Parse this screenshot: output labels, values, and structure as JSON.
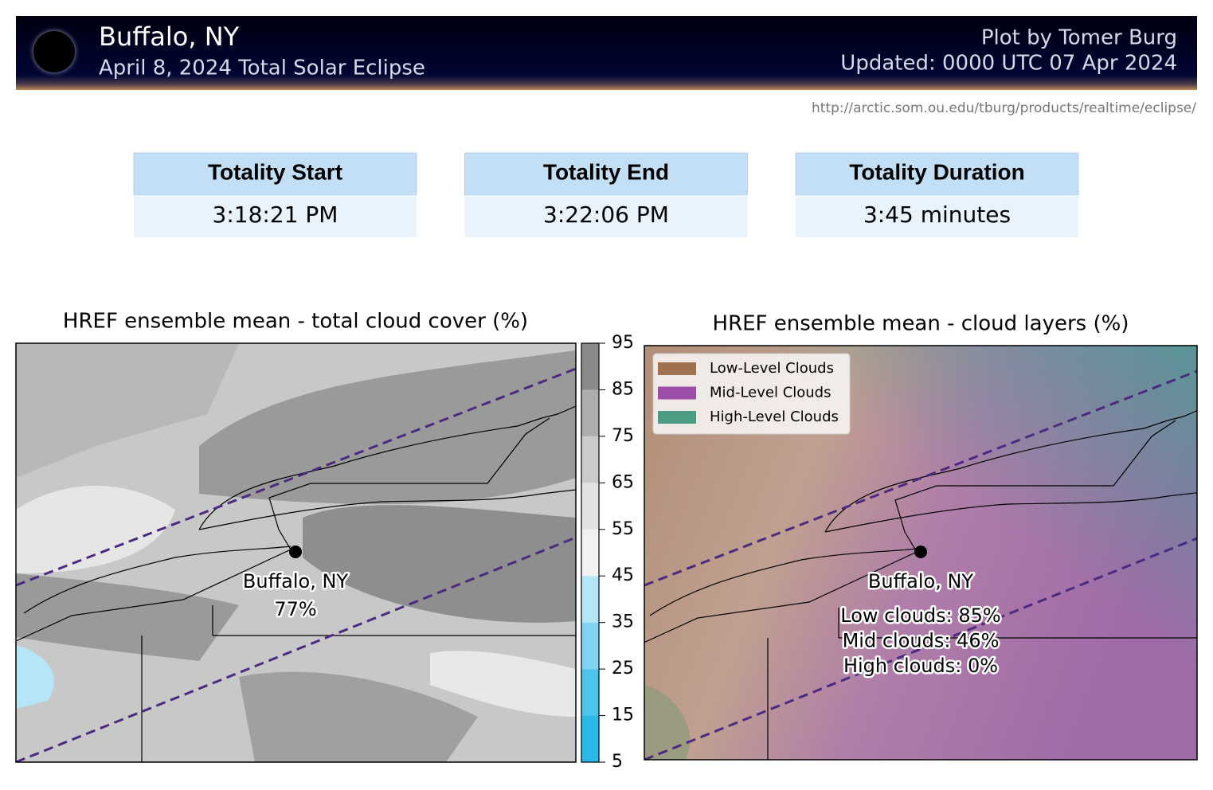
{
  "header": {
    "title": "Buffalo, NY",
    "subtitle": "April 8, 2024 Total Solar Eclipse",
    "credit": "Plot by Tomer Burg",
    "updated": "Updated: 0000 UTC 07 Apr 2024"
  },
  "url": "http://arctic.som.ou.edu/tburg/products/realtime/eclipse/",
  "summary": [
    {
      "label": "Totality Start",
      "value": "3:18:21 PM"
    },
    {
      "label": "Totality End",
      "value": "3:22:06 PM"
    },
    {
      "label": "Totality Duration",
      "value": "3:45 minutes"
    }
  ],
  "left_map": {
    "title": "HREF ensemble mean - total cloud cover (%)",
    "city": "Buffalo, NY",
    "value_label": "77%",
    "colorbar": {
      "ticks": [
        5,
        15,
        25,
        35,
        45,
        55,
        65,
        75,
        85,
        95
      ],
      "colors": [
        "#29b8e8",
        "#4cc4ec",
        "#80d4f1",
        "#b5e6f7",
        "#f2f2f2",
        "#e2e2e2",
        "#cbcbcb",
        "#adadad",
        "#8a8a8a"
      ]
    }
  },
  "right_map": {
    "title": "HREF ensemble mean - cloud layers (%)",
    "city": "Buffalo, NY",
    "legend": [
      {
        "label": "Low-Level Clouds",
        "color": "#a0714f"
      },
      {
        "label": "Mid-Level Clouds",
        "color": "#9c4fa8"
      },
      {
        "label": "High-Level Clouds",
        "color": "#4c9c84"
      }
    ],
    "annotations": [
      "Low clouds: 85%",
      "Mid clouds: 46%",
      "High clouds: 0%"
    ]
  }
}
